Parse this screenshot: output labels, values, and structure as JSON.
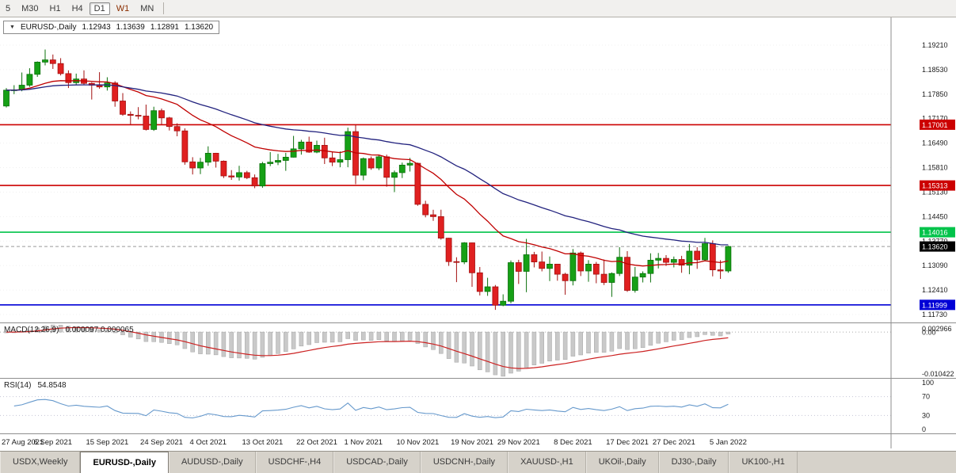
{
  "toolbar": {
    "timeframes": [
      {
        "label": "5",
        "state": "normal"
      },
      {
        "label": "M30",
        "state": "normal"
      },
      {
        "label": "H1",
        "state": "normal"
      },
      {
        "label": "H4",
        "state": "normal"
      },
      {
        "label": "D1",
        "state": "active"
      },
      {
        "label": "W1",
        "state": "highlight"
      },
      {
        "label": "MN",
        "state": "normal"
      }
    ]
  },
  "chart_header": {
    "symbol": "EURUSD-,Daily",
    "open": "1.12943",
    "high": "1.13639",
    "low": "1.12891",
    "close": "1.13620"
  },
  "indicators": {
    "macd": {
      "label": "MACD(12,26,9)",
      "values": "0.000097 0.000065",
      "axis_top": "0.002966",
      "axis_zero": "0.00",
      "axis_bottom": "-0.010422"
    },
    "rsi": {
      "label": "RSI(14)",
      "value": "54.8548",
      "axis": [
        "100",
        "70",
        "30",
        "0"
      ]
    }
  },
  "tabs": [
    {
      "label": "USDX,Weekly",
      "active": false
    },
    {
      "label": "EURUSD-,Daily",
      "active": true
    },
    {
      "label": "AUDUSD-,Daily",
      "active": false
    },
    {
      "label": "USDCHF-,H4",
      "active": false
    },
    {
      "label": "USDCAD-,Daily",
      "active": false
    },
    {
      "label": "USDCNH-,Daily",
      "active": false
    },
    {
      "label": "XAUUSD-,H1",
      "active": false
    },
    {
      "label": "UKOil-,Daily",
      "active": false
    },
    {
      "label": "DJ30-,Daily",
      "active": false
    },
    {
      "label": "UK100-,H1",
      "active": false
    }
  ],
  "chart_data": {
    "type": "candlestick",
    "symbol": "EURUSD",
    "timeframe": "Daily",
    "ylim": [
      1.1151,
      1.1998
    ],
    "y_axis_labels": [
      "1.19210",
      "1.18530",
      "1.17850",
      "1.17170",
      "1.16490",
      "1.15810",
      "1.15130",
      "1.14450",
      "1.13770",
      "1.13090",
      "1.12410",
      "1.11730"
    ],
    "x_tick_labels": [
      {
        "i": 0,
        "label": "27 Aug 2021"
      },
      {
        "i": 6,
        "label": "6 Sep 2021"
      },
      {
        "i": 13,
        "label": "15 Sep 2021"
      },
      {
        "i": 20,
        "label": "24 Sep 2021"
      },
      {
        "i": 26,
        "label": "4 Oct 2021"
      },
      {
        "i": 33,
        "label": "13 Oct 2021"
      },
      {
        "i": 40,
        "label": "22 Oct 2021"
      },
      {
        "i": 46,
        "label": "1 Nov 2021"
      },
      {
        "i": 53,
        "label": "10 Nov 2021"
      },
      {
        "i": 60,
        "label": "19 Nov 2021"
      },
      {
        "i": 66,
        "label": "29 Nov 2021"
      },
      {
        "i": 73,
        "label": "8 Dec 2021"
      },
      {
        "i": 80,
        "label": "17 Dec 2021"
      },
      {
        "i": 86,
        "label": "27 Dec 2021"
      },
      {
        "i": 93,
        "label": "5 Jan 2022"
      }
    ],
    "hlines": [
      {
        "price": 1.17001,
        "label": "1.17001",
        "color": "#cc0000"
      },
      {
        "price": 1.15313,
        "label": "1.15313",
        "color": "#cc0000"
      },
      {
        "price": 1.14016,
        "label": "1.14016",
        "color": "#00c34a"
      },
      {
        "price": 1.11999,
        "label": "1.11999",
        "color": "#0000d6"
      }
    ],
    "current_price": {
      "value": 1.1362,
      "label": "1.13620"
    },
    "ma": [
      {
        "period": 20,
        "color": "#c00000"
      },
      {
        "period": 45,
        "color": "#22227e"
      }
    ],
    "colors": {
      "bull": "#16a016",
      "bull_border": "#0b700b",
      "bear": "#e02020",
      "bear_border": "#a31010",
      "macd_hist": "#c9c9c9",
      "macd_hist_border": "#a5a5a5",
      "macd_signal": "#cc2222",
      "rsi": "#6699cc"
    },
    "candles": [
      [
        1.1752,
        1.1802,
        1.1748,
        1.1796
      ],
      [
        1.1796,
        1.181,
        1.1785,
        1.1797
      ],
      [
        1.1797,
        1.1845,
        1.1793,
        1.181
      ],
      [
        1.181,
        1.1857,
        1.1805,
        1.184
      ],
      [
        1.184,
        1.1876,
        1.1833,
        1.1874
      ],
      [
        1.1874,
        1.1909,
        1.1865,
        1.188
      ],
      [
        1.188,
        1.1895,
        1.1855,
        1.187
      ],
      [
        1.187,
        1.1885,
        1.1837,
        1.1842
      ],
      [
        1.1842,
        1.1851,
        1.1802,
        1.1817
      ],
      [
        1.1817,
        1.1842,
        1.181,
        1.1827
      ],
      [
        1.1827,
        1.1851,
        1.1812,
        1.1815
      ],
      [
        1.1815,
        1.1818,
        1.177,
        1.181
      ],
      [
        1.181,
        1.1846,
        1.18,
        1.1805
      ],
      [
        1.1805,
        1.1832,
        1.1795,
        1.1816
      ],
      [
        1.1816,
        1.1821,
        1.175,
        1.1766
      ],
      [
        1.1766,
        1.1788,
        1.1725,
        1.1729
      ],
      [
        1.1729,
        1.1737,
        1.17,
        1.1726
      ],
      [
        1.1726,
        1.1749,
        1.1715,
        1.1724
      ],
      [
        1.1724,
        1.1756,
        1.1684,
        1.1687
      ],
      [
        1.1687,
        1.175,
        1.1683,
        1.1739
      ],
      [
        1.1739,
        1.1745,
        1.1701,
        1.1719
      ],
      [
        1.1719,
        1.1722,
        1.1684,
        1.1695
      ],
      [
        1.1695,
        1.1704,
        1.1668,
        1.1683
      ],
      [
        1.1683,
        1.169,
        1.1589,
        1.1597
      ],
      [
        1.1597,
        1.161,
        1.1562,
        1.158
      ],
      [
        1.158,
        1.1608,
        1.1563,
        1.1596
      ],
      [
        1.1596,
        1.164,
        1.1586,
        1.1621
      ],
      [
        1.1621,
        1.1622,
        1.1581,
        1.1599
      ],
      [
        1.1599,
        1.1601,
        1.1552,
        1.1558
      ],
      [
        1.1558,
        1.1574,
        1.1547,
        1.1555
      ],
      [
        1.1555,
        1.1586,
        1.1545,
        1.1567
      ],
      [
        1.1567,
        1.1572,
        1.1549,
        1.1553
      ],
      [
        1.1553,
        1.1562,
        1.1524,
        1.153
      ],
      [
        1.153,
        1.1597,
        1.1525,
        1.1592
      ],
      [
        1.1592,
        1.1624,
        1.1585,
        1.1596
      ],
      [
        1.1596,
        1.1619,
        1.1588,
        1.1601
      ],
      [
        1.1601,
        1.1622,
        1.1572,
        1.161
      ],
      [
        1.161,
        1.1669,
        1.1609,
        1.1633
      ],
      [
        1.1633,
        1.1658,
        1.1617,
        1.1652
      ],
      [
        1.1652,
        1.1667,
        1.1622,
        1.1624
      ],
      [
        1.1624,
        1.1656,
        1.1621,
        1.1643
      ],
      [
        1.1643,
        1.1664,
        1.1591,
        1.1608
      ],
      [
        1.1608,
        1.1626,
        1.1585,
        1.1596
      ],
      [
        1.1596,
        1.1626,
        1.1582,
        1.1603
      ],
      [
        1.1603,
        1.1692,
        1.1582,
        1.1681
      ],
      [
        1.1681,
        1.1699,
        1.1535,
        1.156
      ],
      [
        1.156,
        1.1609,
        1.1546,
        1.1606
      ],
      [
        1.1606,
        1.1612,
        1.1575,
        1.158
      ],
      [
        1.158,
        1.1616,
        1.1574,
        1.1611
      ],
      [
        1.1611,
        1.1617,
        1.1528,
        1.1554
      ],
      [
        1.1554,
        1.1573,
        1.1513,
        1.1567
      ],
      [
        1.1567,
        1.1595,
        1.1552,
        1.1588
      ],
      [
        1.1588,
        1.1608,
        1.157,
        1.1593
      ],
      [
        1.1593,
        1.1595,
        1.1475,
        1.1479
      ],
      [
        1.1479,
        1.1489,
        1.1443,
        1.145
      ],
      [
        1.145,
        1.1464,
        1.1433,
        1.1445
      ],
      [
        1.1445,
        1.1464,
        1.1381,
        1.1385
      ],
      [
        1.1385,
        1.1386,
        1.1308,
        1.132
      ],
      [
        1.132,
        1.1332,
        1.1263,
        1.1319
      ],
      [
        1.1319,
        1.1374,
        1.1313,
        1.1372
      ],
      [
        1.1372,
        1.1373,
        1.125,
        1.1289
      ],
      [
        1.1289,
        1.1305,
        1.1226,
        1.1237
      ],
      [
        1.1237,
        1.1275,
        1.1225,
        1.125
      ],
      [
        1.125,
        1.1255,
        1.1186,
        1.1199
      ],
      [
        1.1199,
        1.1229,
        1.1196,
        1.121
      ],
      [
        1.121,
        1.1323,
        1.1204,
        1.1317
      ],
      [
        1.1317,
        1.1325,
        1.1258,
        1.1293
      ],
      [
        1.1293,
        1.1383,
        1.1235,
        1.1339
      ],
      [
        1.1339,
        1.1347,
        1.1304,
        1.1319
      ],
      [
        1.1319,
        1.1348,
        1.1293,
        1.1301
      ],
      [
        1.1301,
        1.1334,
        1.1266,
        1.1313
      ],
      [
        1.1313,
        1.1313,
        1.1267,
        1.1285
      ],
      [
        1.1285,
        1.1289,
        1.1228,
        1.1267
      ],
      [
        1.1267,
        1.1355,
        1.1254,
        1.1344
      ],
      [
        1.1344,
        1.1348,
        1.128,
        1.1294
      ],
      [
        1.1294,
        1.1324,
        1.1264,
        1.1313
      ],
      [
        1.1313,
        1.1319,
        1.126,
        1.1285
      ],
      [
        1.1285,
        1.1326,
        1.1255,
        1.1262
      ],
      [
        1.1262,
        1.129,
        1.1222,
        1.1287
      ],
      [
        1.1287,
        1.136,
        1.128,
        1.1332
      ],
      [
        1.1332,
        1.1349,
        1.1236,
        1.124
      ],
      [
        1.124,
        1.1305,
        1.1234,
        1.1277
      ],
      [
        1.1277,
        1.1293,
        1.1262,
        1.1287
      ],
      [
        1.1287,
        1.1343,
        1.1262,
        1.1324
      ],
      [
        1.1324,
        1.1344,
        1.1301,
        1.1329
      ],
      [
        1.1329,
        1.1338,
        1.1308,
        1.1318
      ],
      [
        1.1318,
        1.1334,
        1.1304,
        1.1326
      ],
      [
        1.1326,
        1.1336,
        1.1289,
        1.131
      ],
      [
        1.131,
        1.1369,
        1.1285,
        1.1349
      ],
      [
        1.1349,
        1.136,
        1.13,
        1.1325
      ],
      [
        1.1325,
        1.1386,
        1.1321,
        1.137
      ],
      [
        1.137,
        1.1379,
        1.1279,
        1.1297
      ],
      [
        1.1297,
        1.1324,
        1.1272,
        1.1294
      ],
      [
        1.1294,
        1.1364,
        1.1289,
        1.1362
      ]
    ]
  }
}
